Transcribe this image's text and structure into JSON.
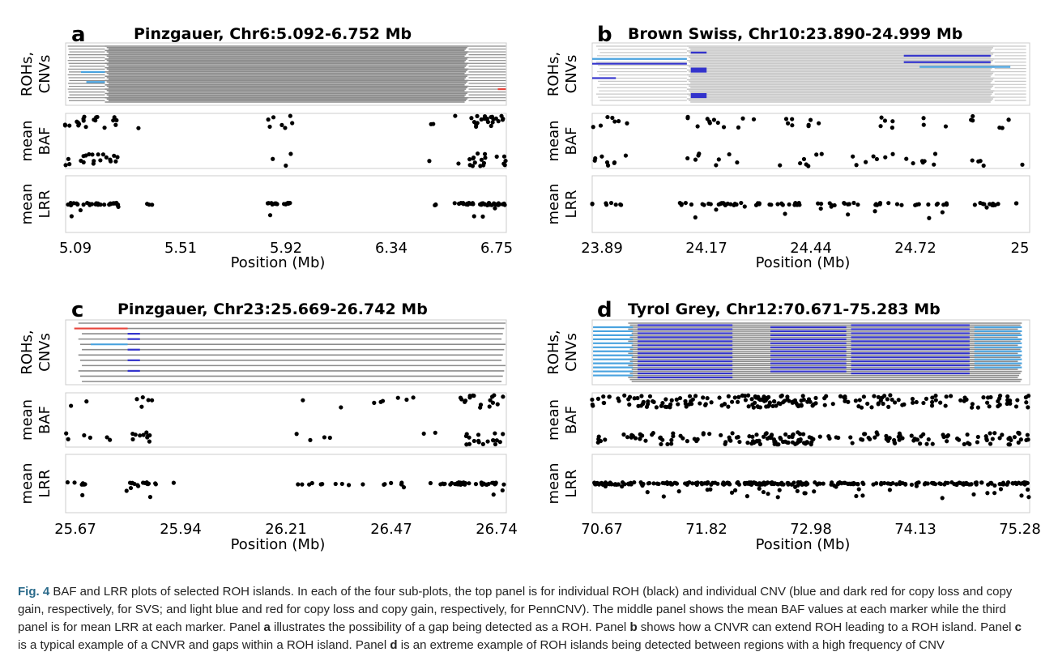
{
  "figure": {
    "caption": {
      "label": "Fig. 4",
      "text_1": " BAF and LRR plots of selected ROH islands. In each of the four sub-plots, the top panel is for individual ROH (black) and individual CNV (blue and dark red for copy loss and copy gain, respectively, for SVS; and light blue and red for copy loss and copy gain, respectively, for PennCNV). The middle panel shows the mean BAF values at each marker while the third panel is for mean LRR at each marker. Panel ",
      "a": "a",
      "text_2": " illustrates the possibility of a gap being detected as a ROH. Panel ",
      "b": "b",
      "text_3": " shows how a CNVR can extend ROH leading to a ROH island. Panel ",
      "c": "c",
      "text_4": " is a typical example of a CNVR and gaps within a ROH island. Panel ",
      "d": "d",
      "text_5": " is an extreme example of ROH islands being detected between regions with a high frequency of CNV"
    }
  },
  "colors": {
    "roh": "#8c8c8c",
    "roh_light": "#c8c8c8",
    "svs_loss": "#3333cc",
    "svs_gain": "#8b1a1a",
    "penncnv_loss": "#4aa3df",
    "penncnv_gain": "#e8453c",
    "point": "#000000",
    "frame": "#cccccc"
  },
  "chart_data": [
    {
      "panel": "a",
      "type": "scatter",
      "title": "Pinzgauer, Chr6:5.092-6.752 Mb",
      "xlabel": "Position (Mb)",
      "xlim": [
        5.092,
        6.752
      ],
      "xticks": [
        "5.09",
        "5.51",
        "5.92",
        "6.34",
        "6.75"
      ],
      "tracks": [
        {
          "ylabel_1": "ROHs,",
          "ylabel_2": "CNVs"
        },
        {
          "ylabel_1": "mean",
          "ylabel_2": "BAF",
          "ylim": [
            0,
            1
          ]
        },
        {
          "ylabel_1": "mean",
          "ylabel_2": "LRR",
          "ylim": [
            -1,
            1
          ]
        }
      ],
      "roh_color": "roh",
      "roh_rows": 40,
      "roh_dense": [
        5.24,
        6.61
      ],
      "roh_extra": [
        [
          5.1,
          5.24
        ],
        [
          6.61,
          6.75
        ]
      ],
      "cnv_segments": [
        {
          "row": 18,
          "start": 5.15,
          "end": 5.24,
          "kind": "penncnv_loss"
        },
        {
          "row": 25,
          "start": 5.17,
          "end": 5.24,
          "kind": "penncnv_loss"
        },
        {
          "row": 30,
          "start": 6.72,
          "end": 6.75,
          "kind": "penncnv_gain"
        }
      ],
      "baf_clusters": [
        [
          5.09,
          5.3,
          40
        ],
        [
          5.36,
          5.37,
          1
        ],
        [
          5.85,
          5.95,
          10
        ],
        [
          6.45,
          6.48,
          3
        ],
        [
          6.55,
          6.58,
          2
        ],
        [
          6.61,
          6.75,
          40
        ]
      ],
      "lrr_clusters": [
        [
          5.09,
          5.3,
          35
        ],
        [
          5.35,
          5.42,
          3
        ],
        [
          5.85,
          5.95,
          15
        ],
        [
          6.46,
          6.49,
          3
        ],
        [
          6.55,
          6.75,
          40
        ]
      ]
    },
    {
      "panel": "b",
      "type": "scatter",
      "title": "Brown Swiss, Chr10:23.890-24.999 Mb",
      "xlabel": "Position (Mb)",
      "xlim": [
        23.89,
        24.999
      ],
      "xticks": [
        "23.89",
        "24.17",
        "24.44",
        "24.72",
        "25"
      ],
      "tracks": [
        {
          "ylabel_1": "ROHs,",
          "ylabel_2": "CNVs"
        },
        {
          "ylabel_1": "mean",
          "ylabel_2": "BAF",
          "ylim": [
            0,
            1
          ]
        },
        {
          "ylabel_1": "mean",
          "ylabel_2": "LRR",
          "ylim": [
            -1,
            1
          ]
        }
      ],
      "roh_color": "roh_light",
      "roh_rows": 36,
      "roh_dense": [
        24.13,
        24.91
      ],
      "roh_extra": [
        [
          23.9,
          24.13
        ],
        [
          24.91,
          24.99
        ]
      ],
      "cnv_segments": [
        {
          "row": 4,
          "start": 24.14,
          "end": 24.18,
          "kind": "svs_loss"
        },
        {
          "row": 8,
          "start": 23.89,
          "end": 24.13,
          "kind": "penncnv_loss"
        },
        {
          "row": 11,
          "start": 23.89,
          "end": 24.13,
          "kind": "svs_loss"
        },
        {
          "row": 14,
          "start": 24.14,
          "end": 24.18,
          "kind": "svs_loss"
        },
        {
          "row": 15,
          "start": 24.14,
          "end": 24.18,
          "kind": "svs_loss"
        },
        {
          "row": 16,
          "start": 24.14,
          "end": 24.18,
          "kind": "svs_loss"
        },
        {
          "row": 20,
          "start": 23.89,
          "end": 23.95,
          "kind": "svs_loss"
        },
        {
          "row": 30,
          "start": 24.14,
          "end": 24.18,
          "kind": "svs_loss"
        },
        {
          "row": 31,
          "start": 24.14,
          "end": 24.18,
          "kind": "svs_loss"
        },
        {
          "row": 32,
          "start": 24.14,
          "end": 24.18,
          "kind": "svs_loss"
        },
        {
          "row": 6,
          "start": 24.68,
          "end": 24.9,
          "kind": "svs_loss"
        },
        {
          "row": 10,
          "start": 24.68,
          "end": 24.9,
          "kind": "svs_loss"
        },
        {
          "row": 13,
          "start": 24.72,
          "end": 24.95,
          "kind": "penncnv_loss"
        }
      ],
      "baf_clusters": [
        [
          23.89,
          23.98,
          15
        ],
        [
          24.13,
          24.3,
          20
        ],
        [
          24.35,
          24.48,
          15
        ],
        [
          24.55,
          24.66,
          12
        ],
        [
          24.68,
          24.8,
          10
        ],
        [
          24.83,
          24.99,
          12
        ]
      ],
      "lrr_clusters": [
        [
          23.89,
          23.98,
          8
        ],
        [
          24.11,
          24.28,
          25
        ],
        [
          24.3,
          24.42,
          18
        ],
        [
          24.44,
          24.58,
          14
        ],
        [
          24.6,
          24.8,
          20
        ],
        [
          24.82,
          24.99,
          14
        ]
      ]
    },
    {
      "panel": "c",
      "type": "scatter",
      "title": "Pinzgauer, Chr23:25.669-26.742 Mb",
      "xlabel": "Position (Mb)",
      "xlim": [
        25.669,
        26.742
      ],
      "xticks": [
        "25.67",
        "25.94",
        "26.21",
        "26.47",
        "26.74"
      ],
      "tracks": [
        {
          "ylabel_1": "ROHs,",
          "ylabel_2": "CNVs"
        },
        {
          "ylabel_1": "mean",
          "ylabel_2": "BAF",
          "ylim": [
            0,
            1
          ]
        },
        {
          "ylabel_1": "mean",
          "ylabel_2": "LRR",
          "ylim": [
            -1,
            1
          ]
        }
      ],
      "roh_color": "roh",
      "roh_rows": 12,
      "roh_dense": [
        25.7,
        26.74
      ],
      "roh_extra": [],
      "cnv_segments": [
        {
          "row": 1,
          "start": 25.69,
          "end": 25.82,
          "kind": "penncnv_gain"
        },
        {
          "row": 2,
          "start": 25.82,
          "end": 25.85,
          "kind": "svs_loss"
        },
        {
          "row": 3,
          "start": 25.82,
          "end": 25.85,
          "kind": "svs_loss"
        },
        {
          "row": 4,
          "start": 25.73,
          "end": 25.82,
          "kind": "penncnv_loss"
        },
        {
          "row": 5,
          "start": 25.82,
          "end": 25.85,
          "kind": "svs_loss"
        },
        {
          "row": 7,
          "start": 25.82,
          "end": 25.85,
          "kind": "svs_loss"
        },
        {
          "row": 9,
          "start": 25.82,
          "end": 25.85,
          "kind": "svs_loss"
        }
      ],
      "baf_clusters": [
        [
          25.67,
          25.78,
          8
        ],
        [
          25.82,
          25.88,
          15
        ],
        [
          26.23,
          26.36,
          6
        ],
        [
          26.4,
          26.6,
          8
        ],
        [
          26.63,
          26.742,
          35
        ]
      ],
      "lrr_clusters": [
        [
          25.67,
          25.72,
          8
        ],
        [
          25.81,
          25.89,
          18
        ],
        [
          25.93,
          25.94,
          1
        ],
        [
          26.22,
          26.4,
          10
        ],
        [
          26.42,
          26.56,
          8
        ],
        [
          26.58,
          26.742,
          40
        ]
      ]
    },
    {
      "panel": "d",
      "type": "scatter",
      "title": "Tyrol Grey, Chr12:70.671-75.283 Mb",
      "xlabel": "Position (Mb)",
      "xlim": [
        70.671,
        75.283
      ],
      "xticks": [
        "70.67",
        "71.82",
        "72.98",
        "74.13",
        "75.28"
      ],
      "tracks": [
        {
          "ylabel_1": "ROHs,",
          "ylabel_2": "CNVs"
        },
        {
          "ylabel_1": "mean",
          "ylabel_2": "BAF",
          "ylim": [
            0,
            1
          ]
        },
        {
          "ylabel_1": "mean",
          "ylabel_2": "LRR",
          "ylim": [
            -1,
            1
          ]
        }
      ],
      "roh_color": "roh",
      "roh_rows": 30,
      "roh_dense": [
        71.05,
        75.2
      ],
      "roh_extra": [],
      "cnv_blocks": [
        {
          "start": 70.68,
          "end": 71.1,
          "rows": [
            2,
            4,
            6,
            8,
            10,
            12,
            14,
            16,
            18,
            20,
            22,
            24,
            26
          ],
          "kind": "penncnv_loss"
        },
        {
          "start": 71.15,
          "end": 72.15,
          "rows": [
            1,
            3,
            5,
            7,
            9,
            11,
            13,
            15,
            17,
            19,
            21,
            23,
            25,
            27
          ],
          "kind": "svs_loss"
        },
        {
          "start": 72.55,
          "end": 73.35,
          "rows": [
            2,
            4,
            6,
            8,
            10,
            12,
            14,
            16,
            18,
            20,
            22,
            24
          ],
          "kind": "svs_loss"
        },
        {
          "start": 73.4,
          "end": 74.65,
          "rows": [
            1,
            3,
            5,
            7,
            9,
            11,
            13,
            15,
            17,
            19,
            21,
            23,
            25
          ],
          "kind": "svs_loss"
        },
        {
          "start": 74.7,
          "end": 75.2,
          "rows": [
            2,
            4,
            6,
            8,
            10,
            12,
            14,
            16,
            18,
            20,
            22
          ],
          "kind": "penncnv_loss"
        }
      ],
      "baf_clusters": [
        [
          70.67,
          71.5,
          60
        ],
        [
          71.5,
          72.3,
          55
        ],
        [
          72.3,
          73.0,
          110
        ],
        [
          73.0,
          73.8,
          50
        ],
        [
          73.8,
          74.6,
          50
        ],
        [
          74.6,
          75.283,
          55
        ]
      ],
      "lrr_clusters": [
        [
          70.67,
          71.5,
          50
        ],
        [
          71.5,
          72.3,
          45
        ],
        [
          72.3,
          73.0,
          70
        ],
        [
          73.0,
          73.8,
          40
        ],
        [
          73.8,
          74.6,
          40
        ],
        [
          74.6,
          75.283,
          45
        ]
      ]
    }
  ]
}
